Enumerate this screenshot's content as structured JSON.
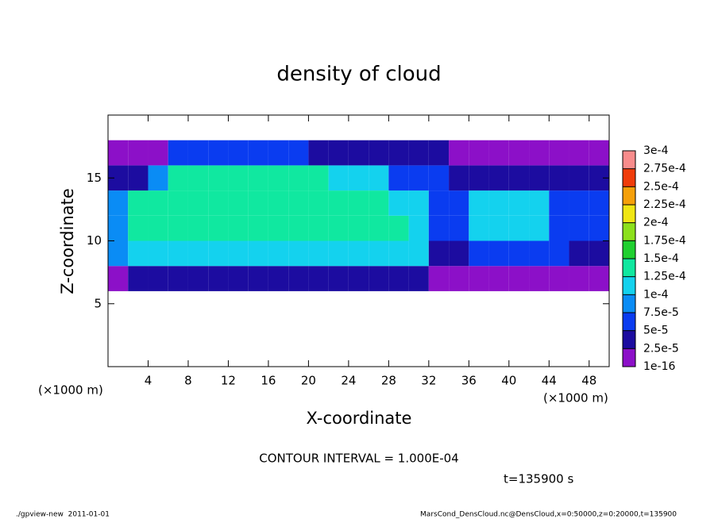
{
  "chart_data": {
    "type": "heatmap",
    "title": "density of cloud",
    "xlabel": "X-coordinate",
    "ylabel": "Z-coordinate",
    "xunit": "(×1000 m)",
    "yunit": "(×1000 m)",
    "annotation": "CONTOUR INTERVAL = 1.000E-04",
    "time_label": "t=135900 s",
    "footer_left": "./gpview-new  2011-01-01",
    "footer_right": "MarsCond_DensCloud.nc@DensCloud,x=0:50000,z=0:20000,t=135900",
    "xlim": [
      0,
      50
    ],
    "ylim": [
      0,
      20
    ],
    "xticks": [
      4,
      8,
      12,
      16,
      20,
      24,
      28,
      32,
      36,
      40,
      44,
      48
    ],
    "yticks": [
      5,
      10,
      15
    ],
    "x": [
      1,
      3,
      5,
      7,
      9,
      11,
      13,
      15,
      17,
      19,
      21,
      23,
      25,
      27,
      29,
      31,
      33,
      35,
      37,
      39,
      41,
      43,
      45,
      47,
      49
    ],
    "y": [
      1,
      3,
      5,
      7,
      9,
      11,
      13,
      15,
      17,
      19
    ],
    "values": [
      [
        null,
        null,
        null,
        null,
        null,
        null,
        null,
        null,
        null,
        null,
        null,
        null,
        null,
        null,
        null,
        null,
        null,
        null,
        null,
        null,
        null,
        null,
        null,
        null,
        null
      ],
      [
        null,
        null,
        null,
        null,
        null,
        null,
        null,
        null,
        null,
        null,
        null,
        null,
        null,
        null,
        null,
        null,
        null,
        null,
        null,
        null,
        null,
        null,
        null,
        null,
        null
      ],
      [
        null,
        null,
        null,
        null,
        null,
        null,
        null,
        null,
        null,
        null,
        null,
        null,
        null,
        null,
        null,
        null,
        null,
        null,
        null,
        null,
        null,
        null,
        null,
        null,
        null
      ],
      [
        2e-05,
        4e-05,
        4e-05,
        4e-05,
        4e-05,
        4e-05,
        4e-05,
        4e-05,
        4e-05,
        4e-05,
        4e-05,
        4e-05,
        4e-05,
        4e-05,
        4e-05,
        4e-05,
        2e-05,
        2e-05,
        2e-05,
        2e-05,
        2e-05,
        2e-05,
        2e-05,
        2e-05,
        2e-05
      ],
      [
        8e-05,
        0.00012,
        0.00012,
        0.00012,
        0.00012,
        0.00012,
        0.00012,
        0.00012,
        0.00012,
        0.00012,
        0.00012,
        0.00012,
        0.00012,
        0.00012,
        0.00012,
        0.00012,
        4e-05,
        4e-05,
        6e-05,
        6e-05,
        6e-05,
        6e-05,
        6e-05,
        4e-05,
        4e-05
      ],
      [
        8e-05,
        0.00014,
        0.00014,
        0.00014,
        0.00014,
        0.00014,
        0.00014,
        0.00014,
        0.00014,
        0.00014,
        0.00014,
        0.00014,
        0.00014,
        0.00014,
        0.00014,
        0.00011,
        5e-05,
        5e-05,
        0.00011,
        0.00011,
        0.00011,
        0.00011,
        6e-05,
        6e-05,
        6e-05
      ],
      [
        8e-05,
        0.00014,
        0.00014,
        0.00014,
        0.00014,
        0.00014,
        0.00014,
        0.00014,
        0.00014,
        0.00014,
        0.00014,
        0.00014,
        0.00014,
        0.00014,
        0.0001,
        0.0001,
        5e-05,
        5e-05,
        0.00011,
        0.00011,
        0.00011,
        0.00011,
        5e-05,
        5e-05,
        5e-05
      ],
      [
        3e-05,
        3e-05,
        9e-05,
        0.00013,
        0.00013,
        0.00013,
        0.00013,
        0.00013,
        0.00013,
        0.00013,
        0.00013,
        0.0001,
        0.0001,
        0.0001,
        6e-05,
        6e-05,
        6e-05,
        3e-05,
        3e-05,
        3e-05,
        3e-05,
        3e-05,
        3e-05,
        3e-05,
        3e-05
      ],
      [
        1e-05,
        1e-05,
        1e-05,
        7e-05,
        7e-05,
        7e-05,
        7e-05,
        7e-05,
        7e-05,
        7e-05,
        3e-05,
        3e-05,
        3e-05,
        3e-05,
        3e-05,
        3e-05,
        3e-05,
        1e-05,
        1e-05,
        1e-05,
        1e-05,
        1e-05,
        1e-05,
        1e-05,
        1e-05
      ],
      [
        null,
        null,
        null,
        null,
        null,
        null,
        null,
        null,
        null,
        null,
        null,
        null,
        null,
        null,
        null,
        null,
        null,
        null,
        null,
        null,
        null,
        null,
        null,
        null,
        null
      ]
    ],
    "colorbar_ticks": [
      1e-16,
      {
        "value": 2.5e-05,
        "label": "2.5e-5"
      },
      {
        "value": 5e-05,
        "label": "5e-5"
      },
      {
        "value": 7.5e-05,
        "label": "7.5e-5"
      },
      {
        "value": 0.0001,
        "label": "1e-4"
      },
      {
        "value": 0.000125,
        "label": "1.25e-4"
      },
      {
        "value": 0.00015,
        "label": "1.5e-4"
      },
      {
        "value": 0.000175,
        "label": "1.75e-4"
      },
      {
        "value": 0.0002,
        "label": "2e-4"
      },
      {
        "value": 0.000225,
        "label": "2.25e-4"
      },
      {
        "value": 0.00025,
        "label": "2.5e-4"
      },
      {
        "value": 0.000275,
        "label": "2.75e-4"
      },
      {
        "value": 0.0003,
        "label": "3e-4"
      }
    ],
    "colors": [
      "#8c10c8",
      "#1c0ca0",
      "#0a3cf0",
      "#0a8cf5",
      "#14d2ee",
      "#10e8a0",
      "#20d030",
      "#8ce01c",
      "#f0e614",
      "#f5a00a",
      "#f03c0a",
      "#f88c8c"
    ]
  }
}
